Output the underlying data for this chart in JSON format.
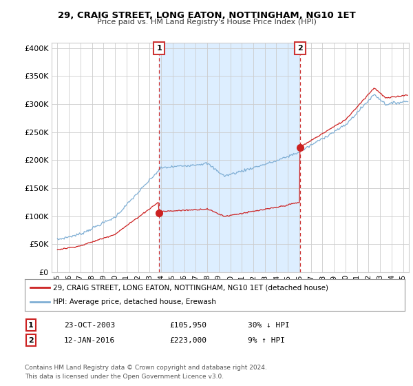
{
  "title": "29, CRAIG STREET, LONG EATON, NOTTINGHAM, NG10 1ET",
  "subtitle": "Price paid vs. HM Land Registry's House Price Index (HPI)",
  "ytick_values": [
    0,
    50000,
    100000,
    150000,
    200000,
    250000,
    300000,
    350000,
    400000
  ],
  "ylim": [
    0,
    410000
  ],
  "xlim_start": 1994.5,
  "xlim_end": 2025.5,
  "hpi_color": "#7eaed4",
  "price_color": "#cc2222",
  "sale1_x": 2003.83,
  "sale1_y": 105950,
  "sale2_x": 2016.05,
  "sale2_y": 223000,
  "shade_color": "#ddeeff",
  "vline_color": "#cc3333",
  "legend_line1": "29, CRAIG STREET, LONG EATON, NOTTINGHAM, NG10 1ET (detached house)",
  "legend_line2": "HPI: Average price, detached house, Erewash",
  "table_row1": [
    "1",
    "23-OCT-2003",
    "£105,950",
    "30% ↓ HPI"
  ],
  "table_row2": [
    "2",
    "12-JAN-2016",
    "£223,000",
    "9% ↑ HPI"
  ],
  "footnote": "Contains HM Land Registry data © Crown copyright and database right 2024.\nThis data is licensed under the Open Government Licence v3.0.",
  "bg_color": "#ffffff",
  "grid_color": "#cccccc"
}
